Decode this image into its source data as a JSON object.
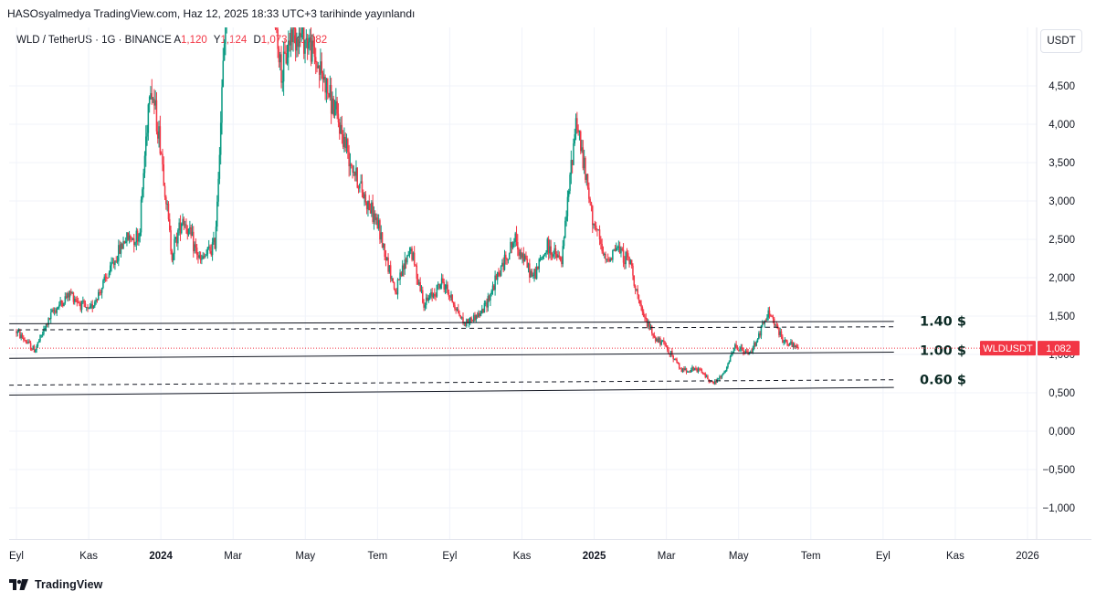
{
  "header": {
    "publisher_line": "HASOsyalmedya TradingView.com, Haz 12, 2025 18:33 UTC+3 tarihinde yayınlandı"
  },
  "legend": {
    "symbol": "WLD / TetherUS · 1G · BINANCE",
    "open_label": "A",
    "open_value": "1,120",
    "high_label": "Y",
    "high_value": "1,124",
    "low_label": "D",
    "low_value": "1,073",
    "close_label": "K",
    "close_value": "1,082"
  },
  "currency_button": "USDT",
  "footer": {
    "brand": "TradingView"
  },
  "colors": {
    "up": "#089981",
    "down": "#f23645",
    "grid": "#f0f3fa",
    "axis_text": "#131722",
    "line": "#131722"
  },
  "chart_data": {
    "type": "candlestick",
    "symbol": "WLDUSDT",
    "interval": "1G",
    "exchange": "BINANCE",
    "y_axis": {
      "side": "right",
      "min": -1.25,
      "max": 5.0,
      "ticks": [
        "4,500",
        "4,000",
        "3,500",
        "3,000",
        "2,500",
        "2,000",
        "1,500",
        "1,000",
        "0,500",
        "0,000",
        "−0,500",
        "−1,000"
      ],
      "tick_values": [
        4.5,
        4.0,
        3.5,
        3.0,
        2.5,
        2.0,
        1.5,
        1.0,
        0.5,
        0.0,
        -0.5,
        -1.0
      ]
    },
    "x_axis": {
      "labels": [
        "Eyl",
        "Kas",
        "2024",
        "Mar",
        "May",
        "Tem",
        "Eyl",
        "Kas",
        "2025",
        "Mar",
        "May",
        "Tem",
        "Eyl",
        "Kas",
        "2026"
      ],
      "bold_labels": [
        "2024",
        "2025"
      ],
      "label_months": [
        0,
        2,
        4,
        6,
        8,
        10,
        12,
        14,
        16,
        18,
        20,
        22,
        24,
        26,
        28
      ],
      "month_range": [
        -0.2,
        28.2
      ]
    },
    "last_price": {
      "label": "WLDUSDT",
      "value": "1,082",
      "y": 1.082
    },
    "series_path": [
      {
        "m": 0.0,
        "p": 1.3
      },
      {
        "m": 0.5,
        "p": 1.05
      },
      {
        "m": 1.0,
        "p": 1.55
      },
      {
        "m": 1.5,
        "p": 1.8
      },
      {
        "m": 2.0,
        "p": 1.55
      },
      {
        "m": 2.5,
        "p": 2.0
      },
      {
        "m": 3.0,
        "p": 2.5
      },
      {
        "m": 3.4,
        "p": 2.55
      },
      {
        "m": 3.7,
        "p": 4.6
      },
      {
        "m": 4.0,
        "p": 3.7
      },
      {
        "m": 4.3,
        "p": 2.3
      },
      {
        "m": 4.6,
        "p": 2.8
      },
      {
        "m": 5.1,
        "p": 2.2
      },
      {
        "m": 5.5,
        "p": 2.45
      },
      {
        "m": 5.85,
        "p": 6.0
      },
      {
        "m": 7.0,
        "p": 6.1
      },
      {
        "m": 7.35,
        "p": 4.6
      },
      {
        "m": 7.6,
        "p": 5.2
      },
      {
        "m": 8.05,
        "p": 5.1
      },
      {
        "m": 8.5,
        "p": 4.6
      },
      {
        "m": 9.0,
        "p": 3.9
      },
      {
        "m": 9.5,
        "p": 3.2
      },
      {
        "m": 10.0,
        "p": 2.7
      },
      {
        "m": 10.5,
        "p": 1.8
      },
      {
        "m": 10.9,
        "p": 2.4
      },
      {
        "m": 11.3,
        "p": 1.65
      },
      {
        "m": 11.8,
        "p": 1.95
      },
      {
        "m": 12.4,
        "p": 1.4
      },
      {
        "m": 12.9,
        "p": 1.55
      },
      {
        "m": 13.4,
        "p": 2.1
      },
      {
        "m": 13.8,
        "p": 2.5
      },
      {
        "m": 14.3,
        "p": 2.0
      },
      {
        "m": 14.7,
        "p": 2.4
      },
      {
        "m": 15.1,
        "p": 2.2
      },
      {
        "m": 15.5,
        "p": 4.1
      },
      {
        "m": 15.9,
        "p": 2.9
      },
      {
        "m": 16.3,
        "p": 2.2
      },
      {
        "m": 16.6,
        "p": 2.4
      },
      {
        "m": 17.0,
        "p": 2.2
      },
      {
        "m": 17.3,
        "p": 1.55
      },
      {
        "m": 17.7,
        "p": 1.2
      },
      {
        "m": 18.0,
        "p": 1.1
      },
      {
        "m": 18.4,
        "p": 0.8
      },
      {
        "m": 18.9,
        "p": 0.8
      },
      {
        "m": 19.3,
        "p": 0.62
      },
      {
        "m": 19.6,
        "p": 0.75
      },
      {
        "m": 19.9,
        "p": 1.1
      },
      {
        "m": 20.3,
        "p": 1.0
      },
      {
        "m": 20.6,
        "p": 1.3
      },
      {
        "m": 20.85,
        "p": 1.55
      },
      {
        "m": 21.2,
        "p": 1.2
      },
      {
        "m": 21.5,
        "p": 1.1
      },
      {
        "m": 21.65,
        "p": 1.08
      }
    ],
    "annotations": [
      {
        "text": "1.40 $",
        "y": 1.42
      },
      {
        "text": "1.00 $",
        "y": 1.04
      },
      {
        "text": "0.60 $",
        "y": 0.66
      }
    ],
    "trend_lines": [
      {
        "style": "solid",
        "from": {
          "m": -0.2,
          "p": 1.4
        },
        "to": {
          "m": 24.3,
          "p": 1.43
        }
      },
      {
        "style": "dashed",
        "from": {
          "m": -0.2,
          "p": 1.32
        },
        "to": {
          "m": 24.3,
          "p": 1.36
        }
      },
      {
        "style": "solid",
        "from": {
          "m": -0.2,
          "p": 0.95
        },
        "to": {
          "m": 24.3,
          "p": 1.03
        }
      },
      {
        "style": "dashed",
        "from": {
          "m": -0.2,
          "p": 0.6
        },
        "to": {
          "m": 24.3,
          "p": 0.67
        }
      },
      {
        "style": "solid",
        "from": {
          "m": -0.2,
          "p": 0.47
        },
        "to": {
          "m": 24.3,
          "p": 0.57
        }
      }
    ],
    "grid": true
  }
}
